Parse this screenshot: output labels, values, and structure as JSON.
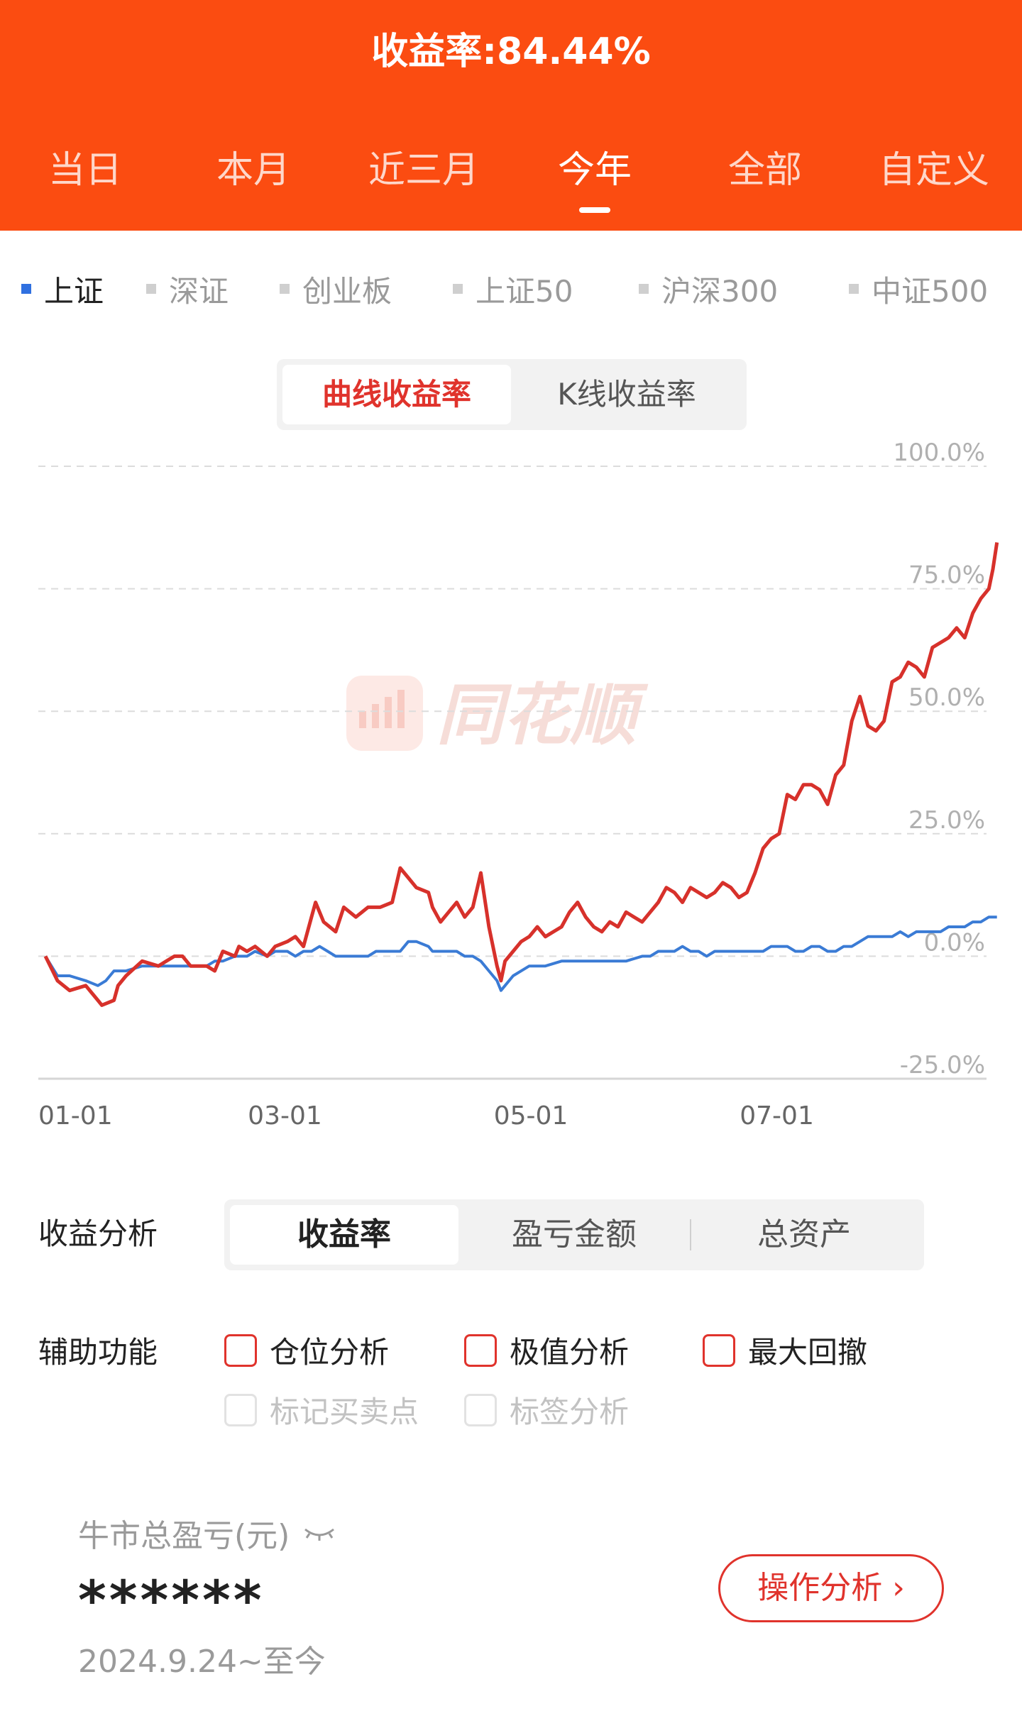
{
  "header": {
    "title": "收益率:84.44%",
    "period_tabs": [
      "当日",
      "本月",
      "近三月",
      "今年",
      "全部",
      "自定义"
    ],
    "active_period": "今年"
  },
  "index_selector": {
    "items": [
      "上证",
      "深证",
      "创业板",
      "上证50",
      "沪深300",
      "中证500"
    ],
    "active": "上证",
    "active_color": "#3070e0"
  },
  "chart_type_toggle": {
    "options": [
      "曲线收益率",
      "K线收益率"
    ],
    "active": "曲线收益率"
  },
  "watermark": "同花顺",
  "chart_data": {
    "type": "line",
    "y_tick_labels": [
      "100.0%",
      "75.0%",
      "50.0%",
      "25.0%",
      "0.0%",
      "-25.0%"
    ],
    "x_tick_labels": [
      "01-01",
      "03-01",
      "05-01",
      "07-01"
    ],
    "ylim": [
      -25,
      100
    ],
    "xlim_days": [
      0,
      210
    ],
    "grid": true,
    "series": [
      {
        "color": "#d7312b",
        "points": [
          [
            0,
            0
          ],
          [
            3,
            -5
          ],
          [
            6,
            -7
          ],
          [
            10,
            -6
          ],
          [
            13,
            -9
          ],
          [
            14,
            -10
          ],
          [
            17,
            -9
          ],
          [
            18,
            -6
          ],
          [
            20,
            -4
          ],
          [
            24,
            -1
          ],
          [
            28,
            -2
          ],
          [
            30,
            -1
          ],
          [
            32,
            0
          ],
          [
            34,
            0
          ],
          [
            36,
            -2
          ],
          [
            40,
            -2
          ],
          [
            42,
            -3
          ],
          [
            44,
            1
          ],
          [
            47,
            0
          ],
          [
            48,
            2
          ],
          [
            50,
            1
          ],
          [
            52,
            2
          ],
          [
            55,
            0
          ],
          [
            57,
            2
          ],
          [
            60,
            3
          ],
          [
            62,
            4
          ],
          [
            64,
            2
          ],
          [
            66,
            8
          ],
          [
            67,
            11
          ],
          [
            69,
            7
          ],
          [
            72,
            5
          ],
          [
            74,
            10
          ],
          [
            77,
            8
          ],
          [
            80,
            10
          ],
          [
            83,
            10
          ],
          [
            86,
            11
          ],
          [
            88,
            18
          ],
          [
            90,
            16
          ],
          [
            92,
            14
          ],
          [
            95,
            13
          ],
          [
            96,
            10
          ],
          [
            98,
            7
          ],
          [
            100,
            9
          ],
          [
            102,
            11
          ],
          [
            104,
            8
          ],
          [
            106,
            10
          ],
          [
            108,
            17
          ],
          [
            110,
            6
          ],
          [
            112,
            -2
          ],
          [
            113,
            -5
          ],
          [
            114,
            -1
          ],
          [
            116,
            1
          ],
          [
            118,
            3
          ],
          [
            120,
            4
          ],
          [
            122,
            6
          ],
          [
            124,
            4
          ],
          [
            126,
            5
          ],
          [
            128,
            6
          ],
          [
            130,
            9
          ],
          [
            132,
            11
          ],
          [
            134,
            8
          ],
          [
            136,
            6
          ],
          [
            138,
            5
          ],
          [
            140,
            7
          ],
          [
            142,
            6
          ],
          [
            144,
            9
          ],
          [
            146,
            8
          ],
          [
            148,
            7
          ],
          [
            150,
            9
          ],
          [
            152,
            11
          ],
          [
            154,
            14
          ],
          [
            156,
            13
          ],
          [
            158,
            11
          ],
          [
            160,
            14
          ],
          [
            162,
            13
          ],
          [
            164,
            12
          ],
          [
            166,
            13
          ],
          [
            168,
            15
          ],
          [
            170,
            14
          ],
          [
            172,
            12
          ],
          [
            174,
            13
          ],
          [
            176,
            17
          ],
          [
            178,
            22
          ],
          [
            180,
            24
          ],
          [
            182,
            25
          ],
          [
            184,
            33
          ],
          [
            186,
            32
          ],
          [
            188,
            35
          ],
          [
            190,
            35
          ],
          [
            192,
            34
          ],
          [
            194,
            31
          ],
          [
            196,
            37
          ],
          [
            198,
            39
          ],
          [
            200,
            48
          ],
          [
            202,
            53
          ],
          [
            204,
            47
          ],
          [
            206,
            46
          ],
          [
            208,
            48
          ],
          [
            210,
            56
          ],
          [
            212,
            57
          ],
          [
            214,
            60
          ],
          [
            216,
            59
          ],
          [
            218,
            57
          ],
          [
            220,
            63
          ],
          [
            222,
            64
          ],
          [
            224,
            65
          ],
          [
            226,
            67
          ],
          [
            228,
            65
          ],
          [
            230,
            70
          ],
          [
            232,
            73
          ],
          [
            234,
            75
          ],
          [
            235,
            79
          ],
          [
            236,
            84.44
          ]
        ]
      },
      {
        "color": "#3a7bd5",
        "points": [
          [
            0,
            0
          ],
          [
            3,
            -4
          ],
          [
            6,
            -4
          ],
          [
            10,
            -5
          ],
          [
            13,
            -6
          ],
          [
            15,
            -5
          ],
          [
            17,
            -3
          ],
          [
            20,
            -3
          ],
          [
            24,
            -2
          ],
          [
            28,
            -2
          ],
          [
            32,
            -2
          ],
          [
            36,
            -2
          ],
          [
            40,
            -2
          ],
          [
            42,
            -1
          ],
          [
            44,
            -1
          ],
          [
            47,
            0
          ],
          [
            50,
            0
          ],
          [
            52,
            1
          ],
          [
            55,
            0
          ],
          [
            57,
            1
          ],
          [
            60,
            1
          ],
          [
            62,
            0
          ],
          [
            64,
            1
          ],
          [
            66,
            1
          ],
          [
            68,
            2
          ],
          [
            70,
            1
          ],
          [
            72,
            0
          ],
          [
            74,
            0
          ],
          [
            77,
            0
          ],
          [
            80,
            0
          ],
          [
            82,
            1
          ],
          [
            85,
            1
          ],
          [
            88,
            1
          ],
          [
            90,
            3
          ],
          [
            92,
            3
          ],
          [
            95,
            2
          ],
          [
            96,
            1
          ],
          [
            98,
            1
          ],
          [
            100,
            1
          ],
          [
            102,
            1
          ],
          [
            104,
            0
          ],
          [
            106,
            0
          ],
          [
            108,
            -1
          ],
          [
            110,
            -3
          ],
          [
            112,
            -5
          ],
          [
            113,
            -7
          ],
          [
            114,
            -6
          ],
          [
            116,
            -4
          ],
          [
            118,
            -3
          ],
          [
            120,
            -2
          ],
          [
            124,
            -2
          ],
          [
            128,
            -1
          ],
          [
            132,
            -1
          ],
          [
            136,
            -1
          ],
          [
            140,
            -1
          ],
          [
            144,
            -1
          ],
          [
            148,
            0
          ],
          [
            150,
            0
          ],
          [
            152,
            1
          ],
          [
            154,
            1
          ],
          [
            156,
            1
          ],
          [
            158,
            2
          ],
          [
            160,
            1
          ],
          [
            162,
            1
          ],
          [
            164,
            0
          ],
          [
            166,
            1
          ],
          [
            168,
            1
          ],
          [
            170,
            1
          ],
          [
            172,
            1
          ],
          [
            174,
            1
          ],
          [
            176,
            1
          ],
          [
            178,
            1
          ],
          [
            180,
            2
          ],
          [
            182,
            2
          ],
          [
            184,
            2
          ],
          [
            186,
            1
          ],
          [
            188,
            1
          ],
          [
            190,
            2
          ],
          [
            192,
            2
          ],
          [
            194,
            1
          ],
          [
            196,
            1
          ],
          [
            198,
            2
          ],
          [
            200,
            2
          ],
          [
            202,
            3
          ],
          [
            204,
            4
          ],
          [
            206,
            4
          ],
          [
            208,
            4
          ],
          [
            210,
            4
          ],
          [
            212,
            5
          ],
          [
            214,
            4
          ],
          [
            216,
            5
          ],
          [
            218,
            5
          ],
          [
            220,
            5
          ],
          [
            222,
            5
          ],
          [
            224,
            6
          ],
          [
            226,
            6
          ],
          [
            228,
            6
          ],
          [
            230,
            7
          ],
          [
            232,
            7
          ],
          [
            234,
            8
          ],
          [
            236,
            8
          ]
        ]
      }
    ]
  },
  "analysis": {
    "label": "收益分析",
    "options": [
      "收益率",
      "盈亏金额",
      "总资产"
    ],
    "active": "收益率"
  },
  "aux": {
    "label": "辅助功能",
    "items": [
      {
        "label": "仓位分析",
        "enabled": true
      },
      {
        "label": "极值分析",
        "enabled": true
      },
      {
        "label": "最大回撤",
        "enabled": true
      },
      {
        "label": "标记买卖点",
        "enabled": false
      },
      {
        "label": "标签分析",
        "enabled": false
      }
    ]
  },
  "summary": {
    "label": "牛市总盈亏(元)",
    "value": "******",
    "date_range": "2024.9.24~至今",
    "button": "操作分析 ›"
  }
}
